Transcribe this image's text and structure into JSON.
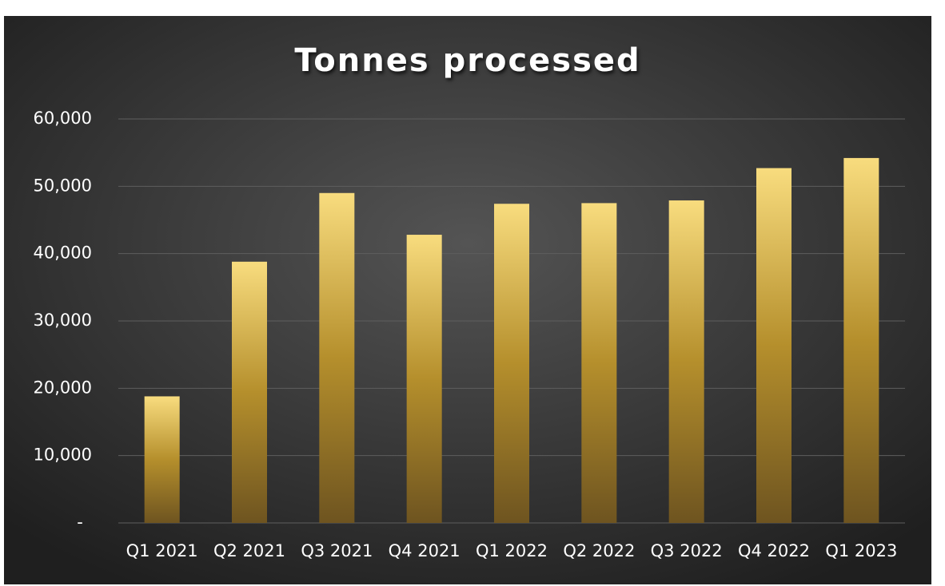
{
  "chart_data": {
    "type": "bar",
    "title": "Tonnes processed",
    "categories": [
      "Q1 2021",
      "Q2 2021",
      "Q3 2021",
      "Q4 2021",
      "Q1 2022",
      "Q2 2022",
      "Q3 2022",
      "Q4 2022",
      "Q1 2023"
    ],
    "values": [
      18800,
      38800,
      49000,
      42800,
      47400,
      47500,
      47900,
      52700,
      54200
    ],
    "color": "#d9b347",
    "ylim": [
      0,
      60000
    ],
    "yticks": [
      {
        "value": 0,
        "label": "-"
      },
      {
        "value": 10000,
        "label": "10,000"
      },
      {
        "value": 20000,
        "label": "20,000"
      },
      {
        "value": 30000,
        "label": "30,000"
      },
      {
        "value": 40000,
        "label": "40,000"
      },
      {
        "value": 50000,
        "label": "50,000"
      },
      {
        "value": 60000,
        "label": "60,000"
      }
    ],
    "grid": true
  }
}
